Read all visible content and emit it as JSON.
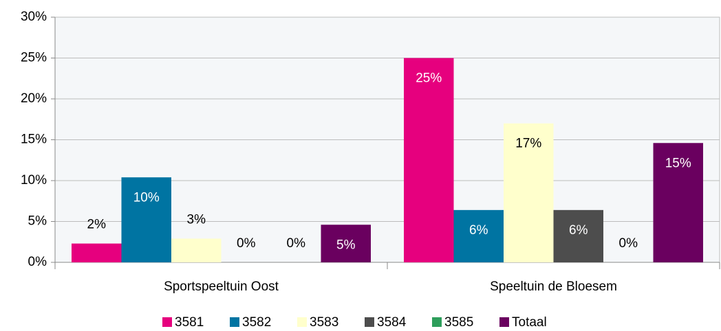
{
  "chart_data": {
    "type": "bar",
    "categories": [
      "Sportspeeltuin Oost",
      "Speeltuin de Bloesem"
    ],
    "series": [
      {
        "name": "3581",
        "color": "#e6007e",
        "values": [
          2.3,
          25.0
        ],
        "value_labels": [
          "2%",
          "25%"
        ]
      },
      {
        "name": "3582",
        "color": "#0074a2",
        "values": [
          10.4,
          6.4
        ],
        "value_labels": [
          "10%",
          "6%"
        ]
      },
      {
        "name": "3583",
        "color": "#ffffcc",
        "values": [
          2.9,
          17.0
        ],
        "value_labels": [
          "3%",
          "17%"
        ]
      },
      {
        "name": "3584",
        "color": "#4d4d4d",
        "values": [
          0,
          6.4
        ],
        "value_labels": [
          "0%",
          "6%"
        ]
      },
      {
        "name": "3585",
        "color": "#2e9e5b",
        "values": [
          0,
          0
        ],
        "value_labels": [
          "0%",
          "0%"
        ]
      },
      {
        "name": "Totaal",
        "color": "#6a005f",
        "values": [
          4.6,
          14.6
        ],
        "value_labels": [
          "5%",
          "15%"
        ]
      }
    ],
    "ylim": [
      0,
      30
    ],
    "yticks": [
      {
        "value": 0,
        "label": "0%"
      },
      {
        "value": 5,
        "label": "5%"
      },
      {
        "value": 10,
        "label": "10%"
      },
      {
        "value": 15,
        "label": "15%"
      },
      {
        "value": 20,
        "label": "20%"
      },
      {
        "value": 25,
        "label": "25%"
      },
      {
        "value": 30,
        "label": "30%"
      }
    ],
    "grid": true,
    "legend": "bottom"
  }
}
